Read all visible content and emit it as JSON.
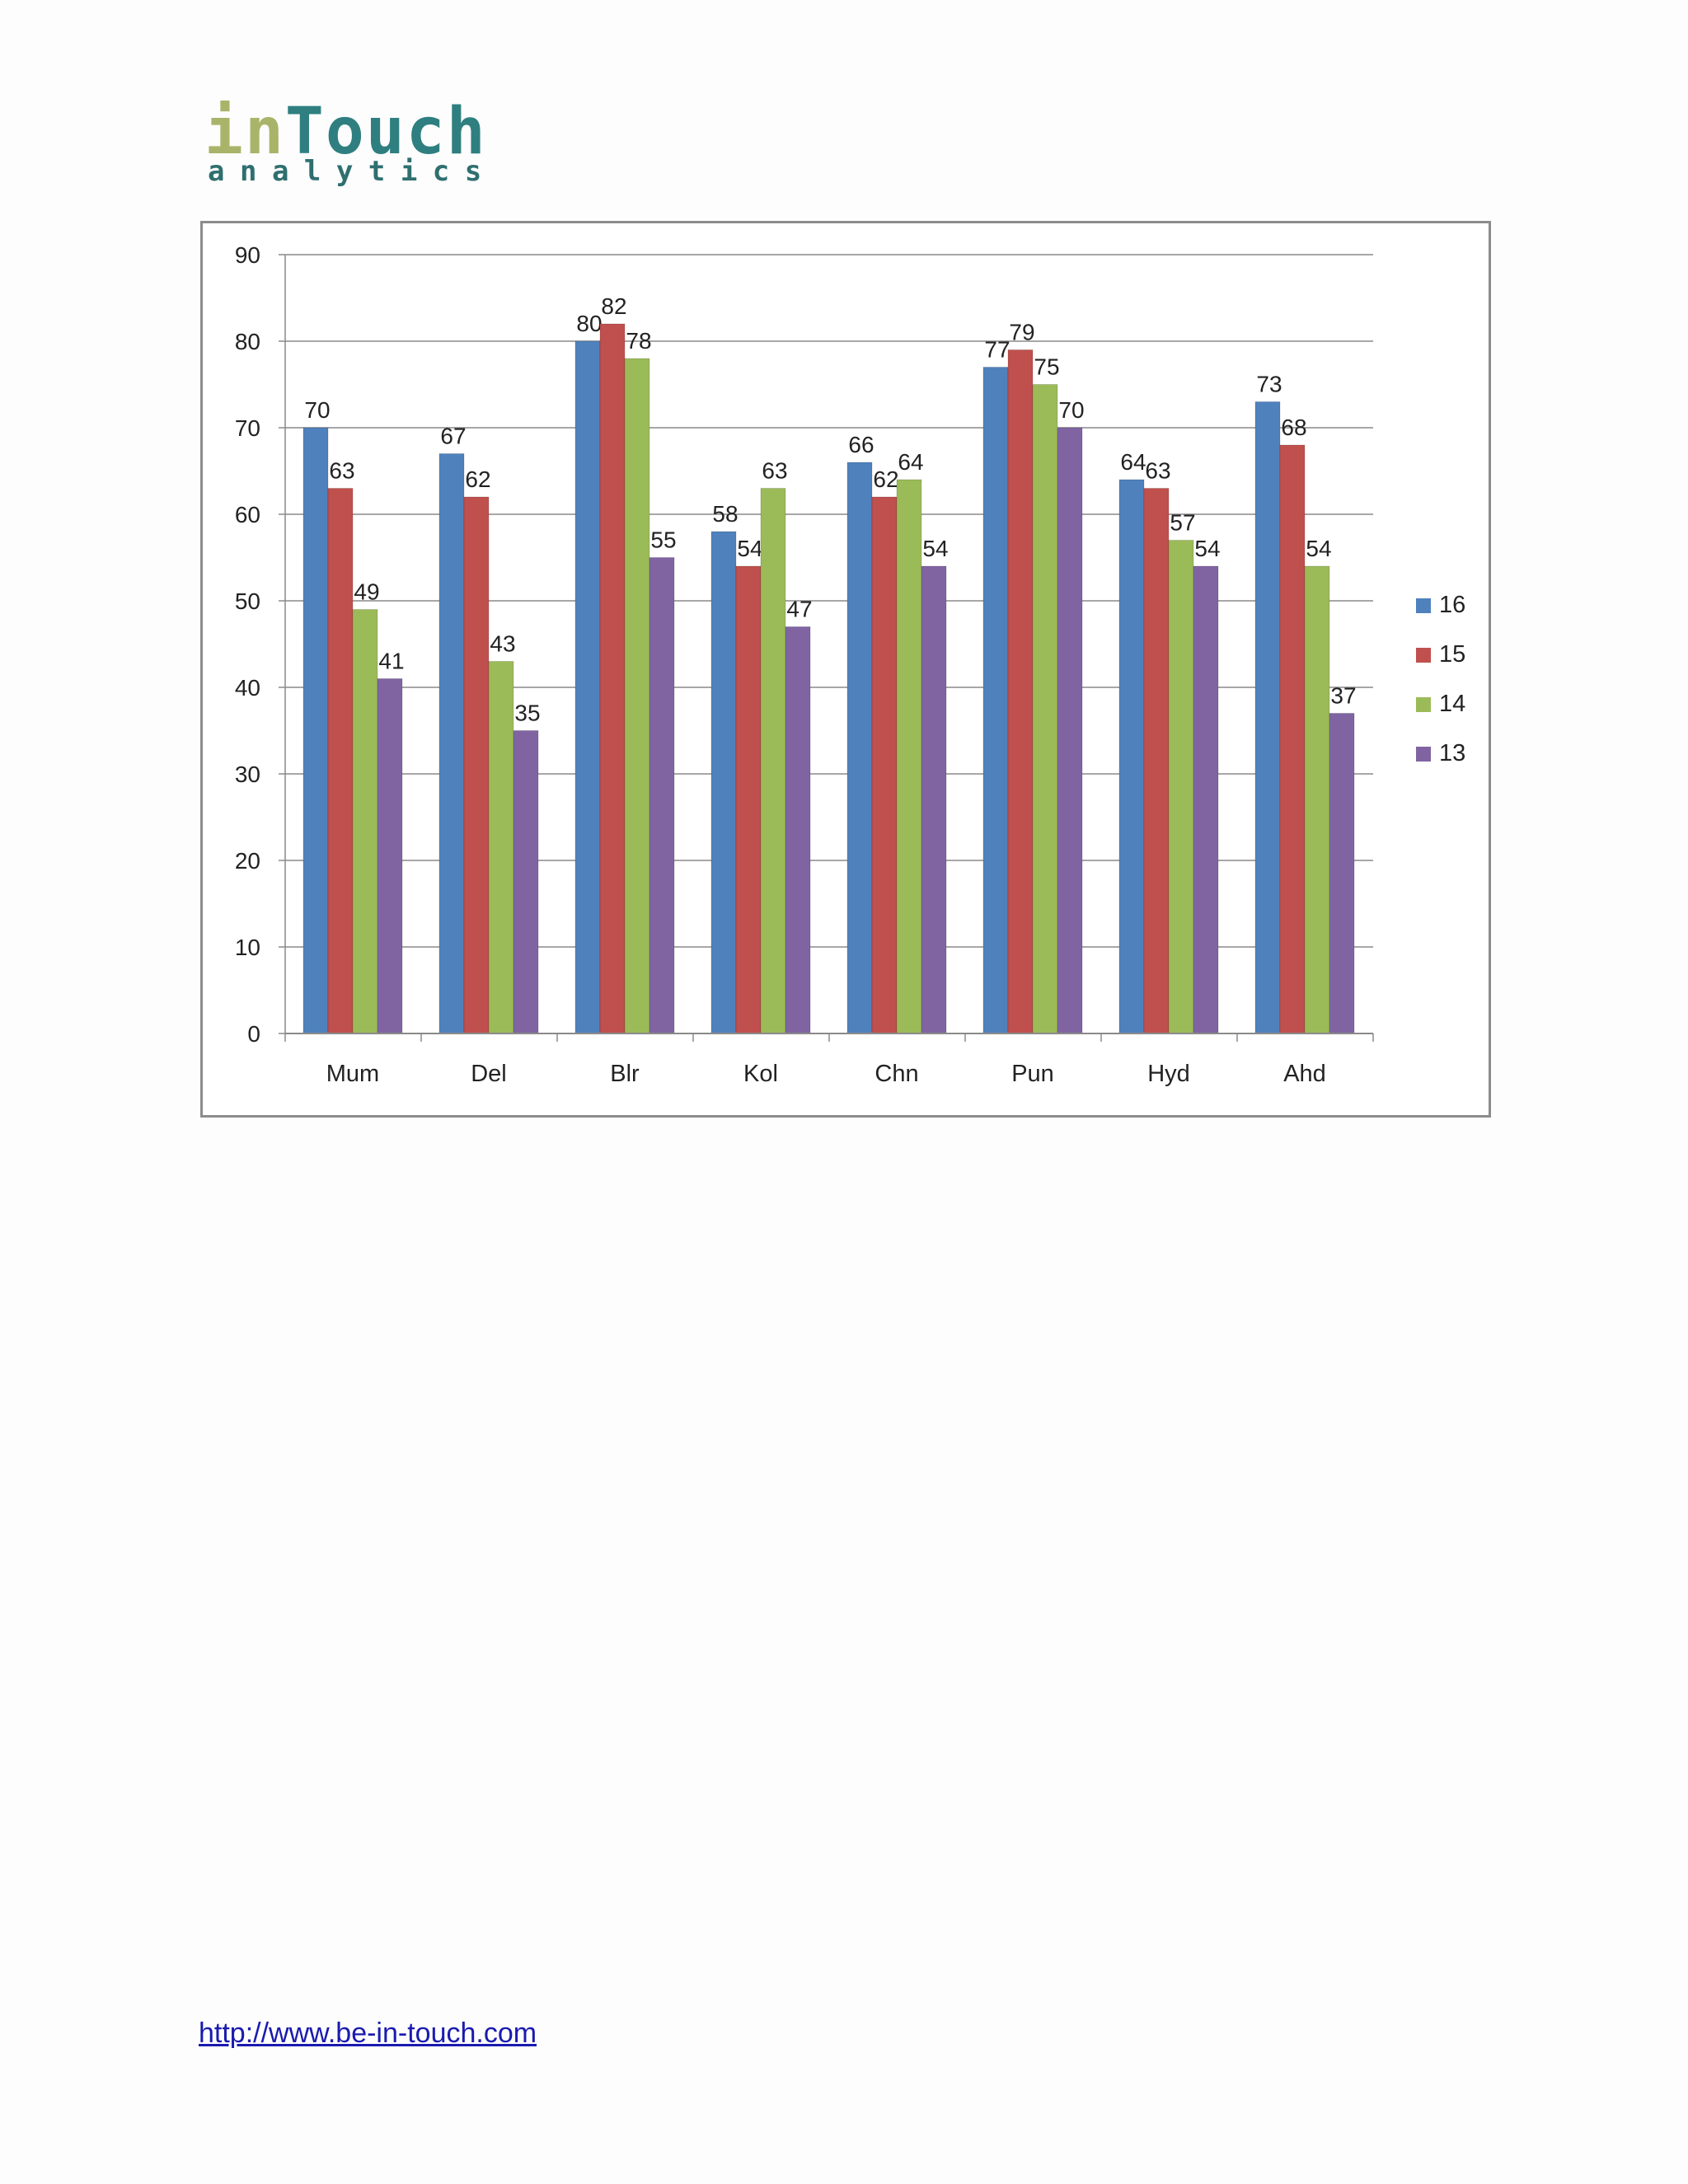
{
  "logo": {
    "main_a": "in",
    "main_b": "Touch",
    "sub": "analytics"
  },
  "footer": {
    "link_text": "http://www.be-in-touch.com"
  },
  "chart_data": {
    "type": "bar",
    "categories": [
      "Mum",
      "Del",
      "Blr",
      "Kol",
      "Chn",
      "Pun",
      "Hyd",
      "Ahd"
    ],
    "series": [
      {
        "name": "16",
        "color": "#4f81bd",
        "values": [
          70,
          67,
          80,
          58,
          66,
          77,
          64,
          73
        ]
      },
      {
        "name": "15",
        "color": "#c0504d",
        "values": [
          63,
          62,
          82,
          54,
          62,
          79,
          63,
          68
        ]
      },
      {
        "name": "14",
        "color": "#9bbb59",
        "values": [
          49,
          43,
          78,
          63,
          64,
          75,
          57,
          54
        ]
      },
      {
        "name": "13",
        "color": "#8064a2",
        "values": [
          41,
          35,
          55,
          47,
          54,
          70,
          54,
          37
        ]
      }
    ],
    "ylim": [
      0,
      90
    ],
    "yticks": [
      0,
      10,
      20,
      30,
      40,
      50,
      60,
      70,
      80,
      90
    ],
    "grid": true,
    "data_labels": true,
    "legend": "right",
    "title": "",
    "xlabel": "",
    "ylabel": ""
  }
}
